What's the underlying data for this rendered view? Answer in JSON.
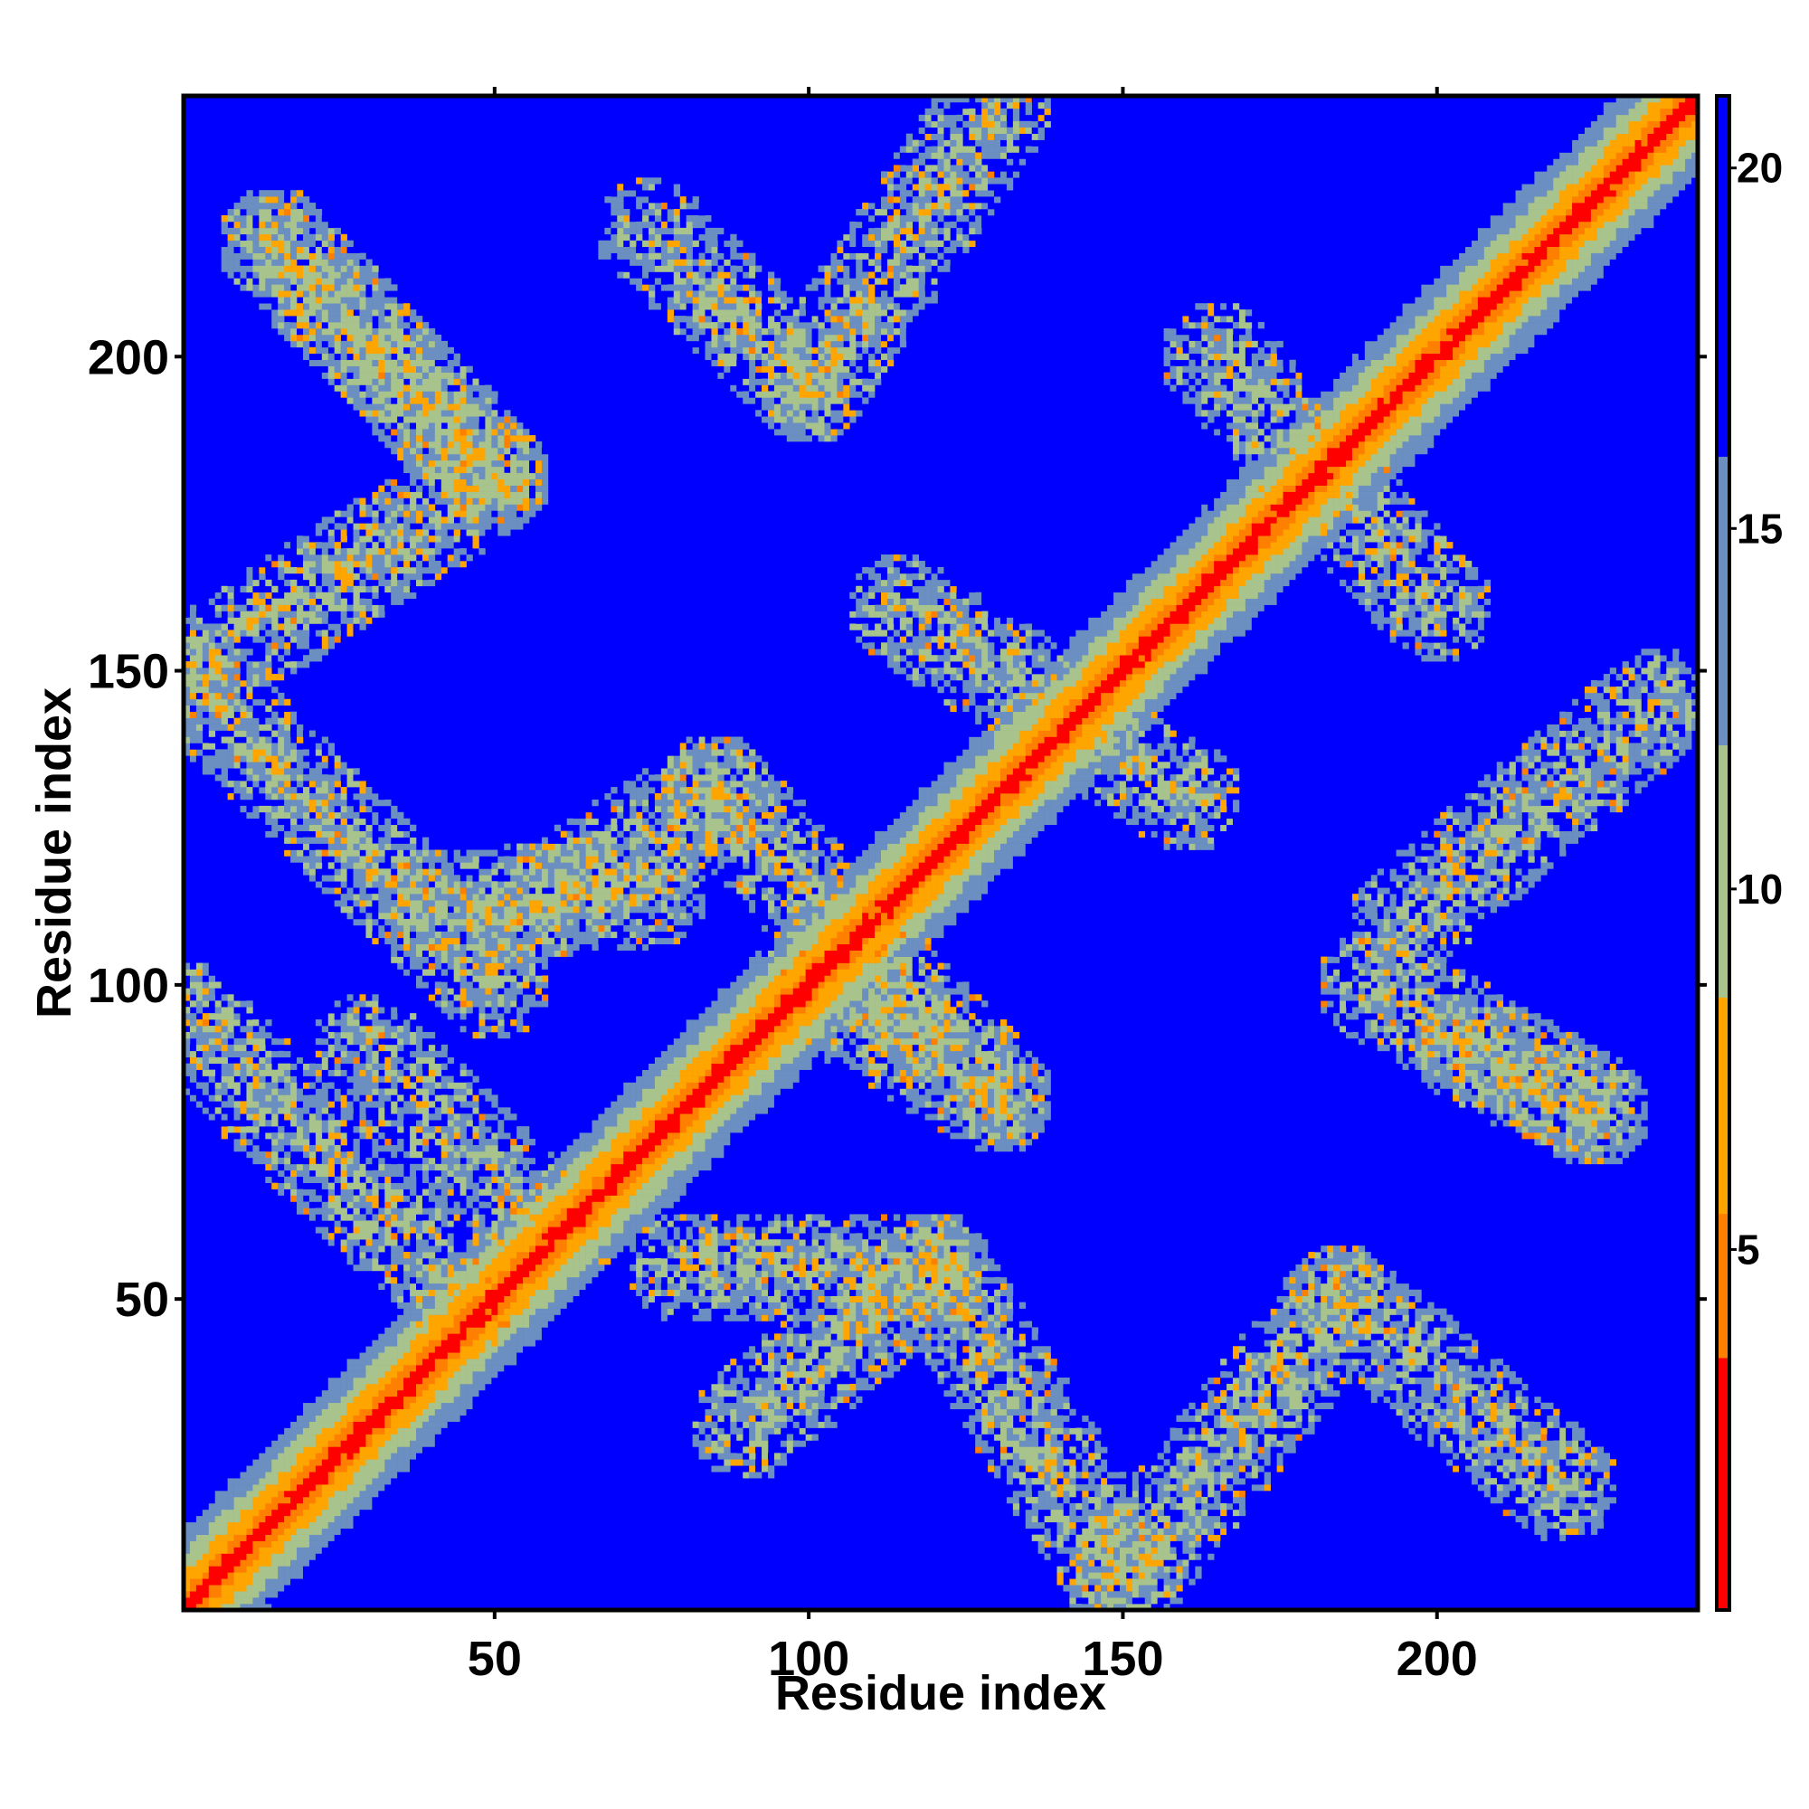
{
  "chart_data": {
    "type": "heatmap",
    "title": "",
    "xlabel": "Residue index",
    "ylabel": "Residue index",
    "x_range": [
      1,
      241
    ],
    "y_range": [
      1,
      241
    ],
    "x_ticks": [
      50,
      100,
      150,
      200
    ],
    "y_ticks": [
      50,
      100,
      150,
      200
    ],
    "colorbar": {
      "ticks": [
        5,
        10,
        15,
        20
      ],
      "range": [
        0,
        21
      ],
      "colors": {
        "low": "#ff0000",
        "mid_low": "#ff8000",
        "mid": "#ffa500",
        "mid_high": "#a8c48c",
        "high": "#6a8fc0",
        "max": "#0000ff"
      }
    },
    "grid": false,
    "diagonal": {
      "from": [
        1,
        1
      ],
      "to": [
        241,
        241
      ],
      "min_value": 1
    },
    "contact_bands": [
      {
        "from": [
          45,
          50
        ],
        "to": [
          1,
          95
        ],
        "value": 11
      },
      {
        "from": [
          15,
          218
        ],
        "to": [
          50,
          181
        ],
        "value": 11
      },
      {
        "from": [
          1,
          149
        ],
        "to": [
          50,
          100
        ],
        "value": 11
      },
      {
        "from": [
          1,
          149
        ],
        "to": [
          50,
          181
        ],
        "value": 11
      },
      {
        "from": [
          50,
          181
        ],
        "to": [
          15,
          218
        ],
        "value": 11
      },
      {
        "from": [
          55,
          111
        ],
        "to": [
          85,
          131
        ],
        "value": 11
      },
      {
        "from": [
          85,
          131
        ],
        "to": [
          130,
          82
        ],
        "value": 11
      },
      {
        "from": [
          100,
          100
        ],
        "to": [
          130,
          82
        ],
        "value": 11
      },
      {
        "from": [
          80,
          55
        ],
        "to": [
          120,
          55
        ],
        "value": 11
      },
      {
        "from": [
          90,
          30
        ],
        "to": [
          120,
          55
        ],
        "value": 11
      },
      {
        "from": [
          120,
          55
        ],
        "to": [
          150,
          5
        ],
        "value": 11
      },
      {
        "from": [
          150,
          5
        ],
        "to": [
          185,
          50
        ],
        "value": 11
      },
      {
        "from": [
          185,
          50
        ],
        "to": [
          220,
          20
        ],
        "value": 11
      },
      {
        "from": [
          205,
          90
        ],
        "to": [
          225,
          80
        ],
        "value": 11
      },
      {
        "from": [
          190,
          100
        ],
        "to": [
          225,
          80
        ],
        "value": 11
      },
      {
        "from": [
          195,
          110
        ],
        "to": [
          235,
          145
        ],
        "value": 11
      },
      {
        "from": [
          115,
          160
        ],
        "to": [
          160,
          130
        ],
        "value": 11
      },
      {
        "from": [
          165,
          200
        ],
        "to": [
          200,
          160
        ],
        "value": 11
      },
      {
        "from": [
          75,
          220
        ],
        "to": [
          100,
          195
        ],
        "value": 11
      },
      {
        "from": [
          100,
          195
        ],
        "to": [
          130,
          240
        ],
        "value": 11
      },
      {
        "from": [
          30,
          90
        ],
        "to": [
          60,
          60
        ],
        "value": 11
      },
      {
        "from": [
          40,
          112
        ],
        "to": [
          75,
          115
        ],
        "value": 11
      }
    ]
  }
}
